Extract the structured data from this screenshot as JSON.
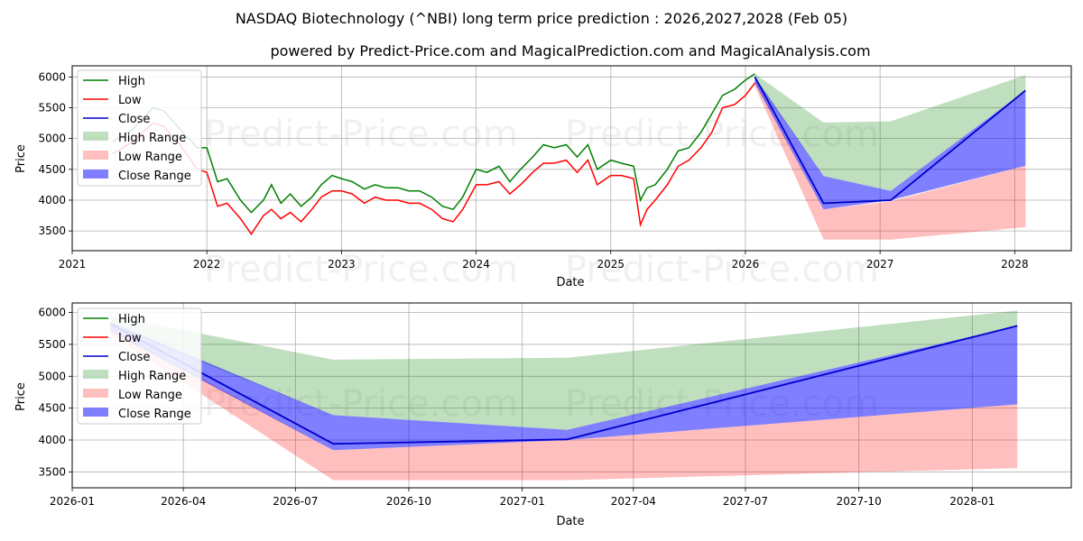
{
  "watermark": "Predict-Price.com",
  "chart_data": [
    {
      "type": "line",
      "title": "NASDAQ Biotechnology (^NBI) long term price prediction : 2026,2027,2028 (Feb 05)",
      "subtitle": "powered by Predict-Price.com and MagicalPrediction.com and MagicalAnalysis.com",
      "xlabel": "Date",
      "ylabel": "Price",
      "xlim": [
        2021.0,
        2028.42
      ],
      "ylim": [
        3180,
        6180
      ],
      "x_ticks": [
        2021,
        2022,
        2023,
        2024,
        2025,
        2026,
        2027,
        2028
      ],
      "x_tick_labels": [
        "2021",
        "2022",
        "2023",
        "2024",
        "2025",
        "2026",
        "2027",
        "2028"
      ],
      "y_ticks": [
        3500,
        4000,
        4500,
        5000,
        5500,
        6000
      ],
      "y_tick_labels": [
        "3500",
        "4000",
        "4500",
        "5000",
        "5500",
        "6000"
      ],
      "grid": true,
      "legend_position": "top-left",
      "legend": [
        "High",
        "Low",
        "Close",
        "High Range",
        "Low Range",
        "Close Range"
      ],
      "history": {
        "x": [
          2021.3,
          2021.45,
          2021.6,
          2021.68,
          2021.8,
          2021.93,
          2022.0,
          2022.08,
          2022.15,
          2022.25,
          2022.33,
          2022.42,
          2022.48,
          2022.55,
          2022.62,
          2022.7,
          2022.78,
          2022.85,
          2022.93,
          2023.0,
          2023.08,
          2023.17,
          2023.25,
          2023.33,
          2023.42,
          2023.5,
          2023.58,
          2023.67,
          2023.75,
          2023.83,
          2023.9,
          2024.0,
          2024.08,
          2024.17,
          2024.25,
          2024.33,
          2024.42,
          2024.5,
          2024.58,
          2024.67,
          2024.75,
          2024.83,
          2024.9,
          2025.0,
          2025.08,
          2025.17,
          2025.22,
          2025.27,
          2025.33,
          2025.42,
          2025.5,
          2025.58,
          2025.67,
          2025.75,
          2025.83,
          2025.92,
          2026.0,
          2026.07
        ],
        "high": [
          4950,
          5150,
          5500,
          5450,
          5150,
          4850,
          4850,
          4300,
          4350,
          4000,
          3800,
          4000,
          4250,
          3950,
          4100,
          3900,
          4050,
          4250,
          4400,
          4350,
          4300,
          4180,
          4250,
          4200,
          4200,
          4150,
          4150,
          4050,
          3900,
          3850,
          4050,
          4500,
          4450,
          4550,
          4300,
          4500,
          4700,
          4900,
          4850,
          4900,
          4700,
          4900,
          4500,
          4650,
          4600,
          4550,
          4000,
          4200,
          4250,
          4500,
          4800,
          4850,
          5100,
          5400,
          5700,
          5800,
          5950,
          6050
        ],
        "low": [
          4750,
          4950,
          5250,
          5200,
          4900,
          4500,
          4450,
          3900,
          3950,
          3700,
          3450,
          3750,
          3850,
          3700,
          3800,
          3650,
          3850,
          4050,
          4150,
          4150,
          4100,
          3950,
          4050,
          4000,
          4000,
          3950,
          3950,
          3850,
          3700,
          3650,
          3850,
          4250,
          4250,
          4300,
          4100,
          4250,
          4450,
          4600,
          4600,
          4650,
          4450,
          4650,
          4250,
          4400,
          4400,
          4350,
          3600,
          3850,
          4000,
          4250,
          4550,
          4650,
          4850,
          5100,
          5500,
          5550,
          5700,
          5900
        ],
        "close": [
          4850,
          5050,
          5400,
          5350,
          5050,
          4700,
          4650,
          4100,
          4150,
          3850,
          3600,
          3900,
          4050,
          3800,
          3950,
          3800,
          3950,
          4150,
          4300,
          4250,
          4200,
          4050,
          4150,
          4100,
          4100,
          4050,
          4050,
          3950,
          3800,
          3750,
          3950,
          4400,
          4350,
          4450,
          4200,
          4400,
          4600,
          4750,
          4750,
          4800,
          4600,
          4800,
          4400,
          4550,
          4500,
          4450,
          3800,
          4050,
          4150,
          4400,
          4700,
          4750,
          5000,
          5250,
          5600,
          5700,
          5800,
          6000
        ]
      },
      "forecast": {
        "x": [
          2026.07,
          2026.58,
          2027.08,
          2028.08
        ],
        "high_range": {
          "upper": [
            6050,
            5260,
            5280,
            6030
          ],
          "lower": [
            5950,
            4390,
            4150,
            5780
          ]
        },
        "low_range": {
          "upper": [
            5950,
            3850,
            3980,
            4560
          ],
          "lower": [
            5850,
            3360,
            3360,
            3560
          ]
        },
        "close_range": {
          "upper": [
            6000,
            4390,
            4150,
            5780
          ],
          "lower": [
            5900,
            3850,
            4000,
            4560
          ]
        },
        "close": [
          6000,
          3950,
          4000,
          5780
        ]
      }
    },
    {
      "type": "line",
      "xlabel": "Date",
      "ylabel": "Price",
      "xlim": [
        2026.0,
        2028.22
      ],
      "ylim": [
        3250,
        6150
      ],
      "x_ticks": [
        2026.0,
        2026.247,
        2026.496,
        2026.748,
        2027.0,
        2027.247,
        2027.496,
        2027.748,
        2028.0
      ],
      "x_tick_labels": [
        "2026-01",
        "2026-04",
        "2026-07",
        "2026-10",
        "2027-01",
        "2027-04",
        "2027-07",
        "2027-10",
        "2028-01"
      ],
      "y_ticks": [
        3500,
        4000,
        4500,
        5000,
        5500,
        6000
      ],
      "y_tick_labels": [
        "3500",
        "4000",
        "4500",
        "5000",
        "5500",
        "6000"
      ],
      "grid": true,
      "legend_position": "top-left",
      "legend": [
        "High",
        "Low",
        "Close",
        "High Range",
        "Low Range",
        "Close Range"
      ],
      "forecast": {
        "x": [
          2026.085,
          2026.58,
          2027.1,
          2028.1
        ],
        "high_range": {
          "upper": [
            5950,
            5260,
            5290,
            6030
          ],
          "lower": [
            5800,
            4390,
            4160,
            5790
          ]
        },
        "low_range": {
          "upper": [
            5750,
            3840,
            4000,
            4560
          ],
          "lower": [
            5650,
            3370,
            3370,
            3560
          ]
        },
        "close_range": {
          "upper": [
            5850,
            4390,
            4160,
            5790
          ],
          "lower": [
            5700,
            3840,
            4000,
            4560
          ]
        },
        "close": [
          5820,
          3940,
          4010,
          5790
        ]
      }
    }
  ]
}
